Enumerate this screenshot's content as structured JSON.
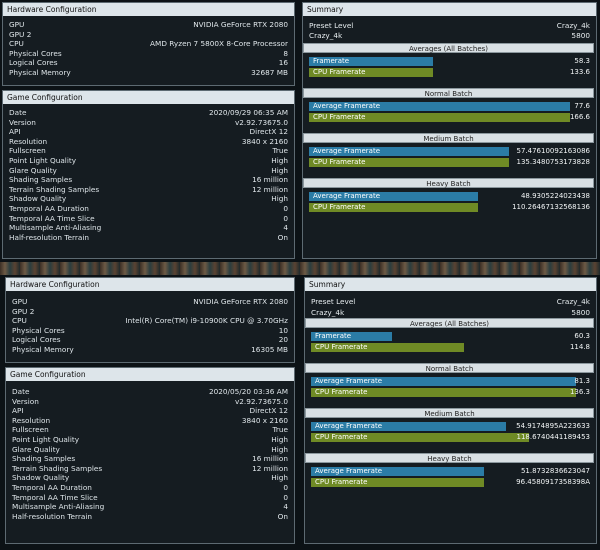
{
  "top": {
    "hardware": {
      "title": "Hardware Configuration",
      "rows": [
        {
          "label": "GPU",
          "value": "NVIDIA GeForce RTX 2080"
        },
        {
          "label": "GPU 2",
          "value": ""
        },
        {
          "label": "CPU",
          "value": "AMD Ryzen 7 5800X 8-Core Processor"
        },
        {
          "label": "Physical Cores",
          "value": "8"
        },
        {
          "label": "Logical Cores",
          "value": "16"
        },
        {
          "label": "Physical Memory",
          "value": "32687 MB"
        }
      ]
    },
    "game": {
      "title": "Game Configuration",
      "rows": [
        {
          "label": "Date",
          "value": "2020/09/29 06:35 AM"
        },
        {
          "label": "Version",
          "value": "v2.92.73675.0"
        },
        {
          "label": "API",
          "value": "DirectX 12"
        },
        {
          "label": "Resolution",
          "value": "3840 x 2160"
        },
        {
          "label": "Fullscreen",
          "value": "True"
        },
        {
          "label": "Point Light Quality",
          "value": "High"
        },
        {
          "label": "Glare Quality",
          "value": "High"
        },
        {
          "label": "Shading Samples",
          "value": "16 million"
        },
        {
          "label": "Terrain Shading Samples",
          "value": "12 million"
        },
        {
          "label": "Shadow Quality",
          "value": "High"
        },
        {
          "label": "Temporal AA Duration",
          "value": "0"
        },
        {
          "label": "Temporal AA Time Slice",
          "value": "0"
        },
        {
          "label": "Multisample Anti-Aliasing",
          "value": "4"
        },
        {
          "label": "Half-resolution Terrain",
          "value": "On"
        }
      ]
    },
    "summary": {
      "title": "Summary",
      "preset_label": "Preset Level",
      "preset_value": "Crazy_4k",
      "crazy_label": "Crazy_4k",
      "crazy_value": "5800",
      "sections": [
        {
          "header": "Averages (All Batches)",
          "fr_label": "Framerate",
          "fr_value": "58.3",
          "fr_frac": 0.44,
          "cpu_label": "CPU Framerate",
          "cpu_value": "133.6",
          "cpu_frac": 0.44
        },
        {
          "header": "Normal Batch",
          "fr_label": "Average Framerate",
          "fr_value": "77.6",
          "fr_frac": 0.93,
          "cpu_label": "CPU Framerate",
          "cpu_value": "166.6",
          "cpu_frac": 0.93
        },
        {
          "header": "Medium Batch",
          "fr_label": "Average Framerate",
          "fr_value": "57.47610092163086",
          "fr_frac": 0.71,
          "cpu_label": "CPU Framerate",
          "cpu_value": "135.3480753173828",
          "cpu_frac": 0.71
        },
        {
          "header": "Heavy Batch",
          "fr_label": "Average Framerate",
          "fr_value": "48.9305224023438",
          "fr_frac": 0.6,
          "cpu_label": "CPU Framerate",
          "cpu_value": "110.26467132568136",
          "cpu_frac": 0.6
        }
      ]
    }
  },
  "bottom": {
    "hardware": {
      "title": "Hardware Configuration",
      "rows": [
        {
          "label": "GPU",
          "value": "NVIDIA GeForce RTX 2080"
        },
        {
          "label": "GPU 2",
          "value": ""
        },
        {
          "label": "CPU",
          "value": "Intel(R) Core(TM) i9-10900K CPU @ 3.70GHz"
        },
        {
          "label": "Physical Cores",
          "value": "10"
        },
        {
          "label": "Logical Cores",
          "value": "20"
        },
        {
          "label": "Physical Memory",
          "value": "16305 MB"
        }
      ]
    },
    "game": {
      "title": "Game Configuration",
      "rows": [
        {
          "label": "Date",
          "value": "2020/05/20 03:36 AM"
        },
        {
          "label": "Version",
          "value": "v2.92.73675.0"
        },
        {
          "label": "API",
          "value": "DirectX 12"
        },
        {
          "label": "Resolution",
          "value": "3840 x 2160"
        },
        {
          "label": "Fullscreen",
          "value": "True"
        },
        {
          "label": "Point Light Quality",
          "value": "High"
        },
        {
          "label": "Glare Quality",
          "value": "High"
        },
        {
          "label": "Shading Samples",
          "value": "16 million"
        },
        {
          "label": "Terrain Shading Samples",
          "value": "12 million"
        },
        {
          "label": "Shadow Quality",
          "value": "High"
        },
        {
          "label": "Temporal AA Duration",
          "value": "0"
        },
        {
          "label": "Temporal AA Time Slice",
          "value": "0"
        },
        {
          "label": "Multisample Anti-Aliasing",
          "value": "4"
        },
        {
          "label": "Half-resolution Terrain",
          "value": "On"
        }
      ]
    },
    "summary": {
      "title": "Summary",
      "preset_label": "Preset Level",
      "preset_value": "Crazy_4k",
      "crazy_label": "Crazy_4k",
      "crazy_value": "5800",
      "sections": [
        {
          "header": "Averages (All Batches)",
          "fr_label": "Framerate",
          "fr_value": "60.3",
          "fr_frac": 0.29,
          "cpu_label": "CPU Framerate",
          "cpu_value": "114.8",
          "cpu_frac": 0.55
        },
        {
          "header": "Normal Batch",
          "fr_label": "Average Framerate",
          "fr_value": "81.3",
          "fr_frac": 0.95,
          "cpu_label": "CPU Framerate",
          "cpu_value": "136.3",
          "cpu_frac": 0.95
        },
        {
          "header": "Medium Batch",
          "fr_label": "Average Framerate",
          "fr_value": "54.9174895A223633",
          "fr_frac": 0.7,
          "cpu_label": "CPU Framerate",
          "cpu_value": "118.6740441189453",
          "cpu_frac": 0.78
        },
        {
          "header": "Heavy Batch",
          "fr_label": "Average Framerate",
          "fr_value": "51.8732836623047",
          "fr_frac": 0.62,
          "cpu_label": "CPU Framerate",
          "cpu_value": "96.4580917358398A",
          "cpu_frac": 0.62
        }
      ]
    }
  }
}
